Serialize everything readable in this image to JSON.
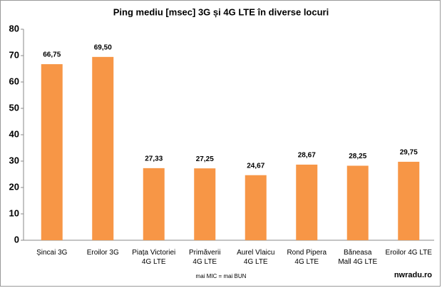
{
  "chart_data": {
    "type": "bar",
    "title": "Ping mediu [msec] 3G și 4G LTE în diverse locuri",
    "categories": [
      "Șincai 3G",
      "Eroilor 3G",
      "Piața Victoriei\n4G LTE",
      "Primăverii\n4G LTE",
      "Aurel Vlaicu\n4G LTE",
      "Rond Pipera\n4G LTE",
      "Băneasa\nMall 4G LTE",
      "Eroilor 4G LTE"
    ],
    "values": [
      66.75,
      69.5,
      27.33,
      27.25,
      24.67,
      28.67,
      28.25,
      29.75
    ],
    "value_labels": [
      "66,75",
      "69,50",
      "27,33",
      "27,25",
      "24,67",
      "28,67",
      "28,25",
      "29,75"
    ],
    "color": "#f79646",
    "ylim": [
      0,
      80
    ],
    "yticks": [
      0,
      10,
      20,
      30,
      40,
      50,
      60,
      70,
      80
    ],
    "grid": false,
    "note": "mai MIC = mai BUN",
    "source": "nwradu.ro"
  }
}
